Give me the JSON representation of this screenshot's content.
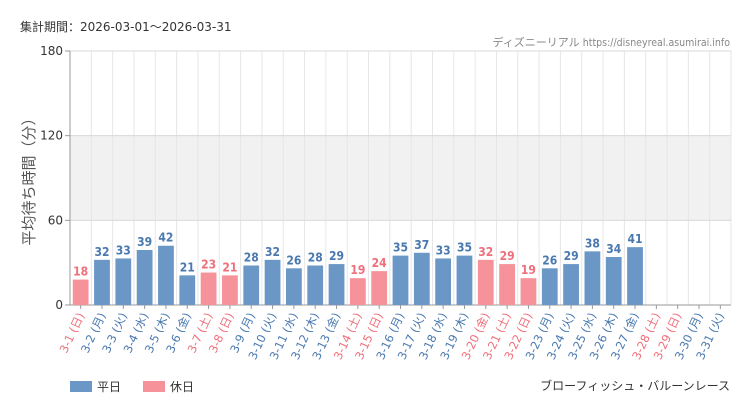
{
  "header": {
    "period_label": "集計期間：2026-03-01〜2026-03-31",
    "site_name": "ディズニーリアル",
    "site_url": "https://disneyreal.asumirai.info"
  },
  "legend": {
    "weekday_label": "平日",
    "holiday_label": "休日"
  },
  "colors": {
    "weekday": "#6b97c6",
    "holiday": "#f5929a",
    "weekday_text": "#4a79b0",
    "holiday_text": "#ef6f7a"
  },
  "attraction_name": "ブローフィッシュ・バルーンレース",
  "chart_data": {
    "type": "bar",
    "title": "",
    "ylabel": "平均待ち時間（分）",
    "xlabel": "",
    "ylim": [
      0,
      180
    ],
    "yticks": [
      0,
      60,
      120,
      180
    ],
    "shaded_band": [
      60,
      120
    ],
    "categories": [
      "3-1 (日)",
      "3-2 (月)",
      "3-3 (火)",
      "3-4 (水)",
      "3-5 (木)",
      "3-6 (金)",
      "3-7 (土)",
      "3-8 (日)",
      "3-9 (月)",
      "3-10 (火)",
      "3-11 (水)",
      "3-12 (木)",
      "3-13 (金)",
      "3-14 (土)",
      "3-15 (日)",
      "3-16 (月)",
      "3-17 (火)",
      "3-18 (水)",
      "3-19 (木)",
      "3-20 (金)",
      "3-21 (土)",
      "3-22 (日)",
      "3-23 (月)",
      "3-24 (火)",
      "3-25 (水)",
      "3-26 (木)",
      "3-27 (金)",
      "3-28 (土)",
      "3-29 (日)",
      "3-30 (月)",
      "3-31 (火)"
    ],
    "values": [
      18,
      32,
      33,
      39,
      42,
      21,
      23,
      21,
      28,
      32,
      26,
      28,
      29,
      19,
      24,
      35,
      37,
      33,
      35,
      32,
      29,
      19,
      26,
      29,
      38,
      34,
      41,
      null,
      null,
      null,
      null
    ],
    "holiday": [
      true,
      false,
      false,
      false,
      false,
      false,
      true,
      true,
      false,
      false,
      false,
      false,
      false,
      true,
      true,
      false,
      false,
      false,
      false,
      true,
      true,
      true,
      false,
      false,
      false,
      false,
      false,
      true,
      true,
      false,
      false
    ]
  }
}
